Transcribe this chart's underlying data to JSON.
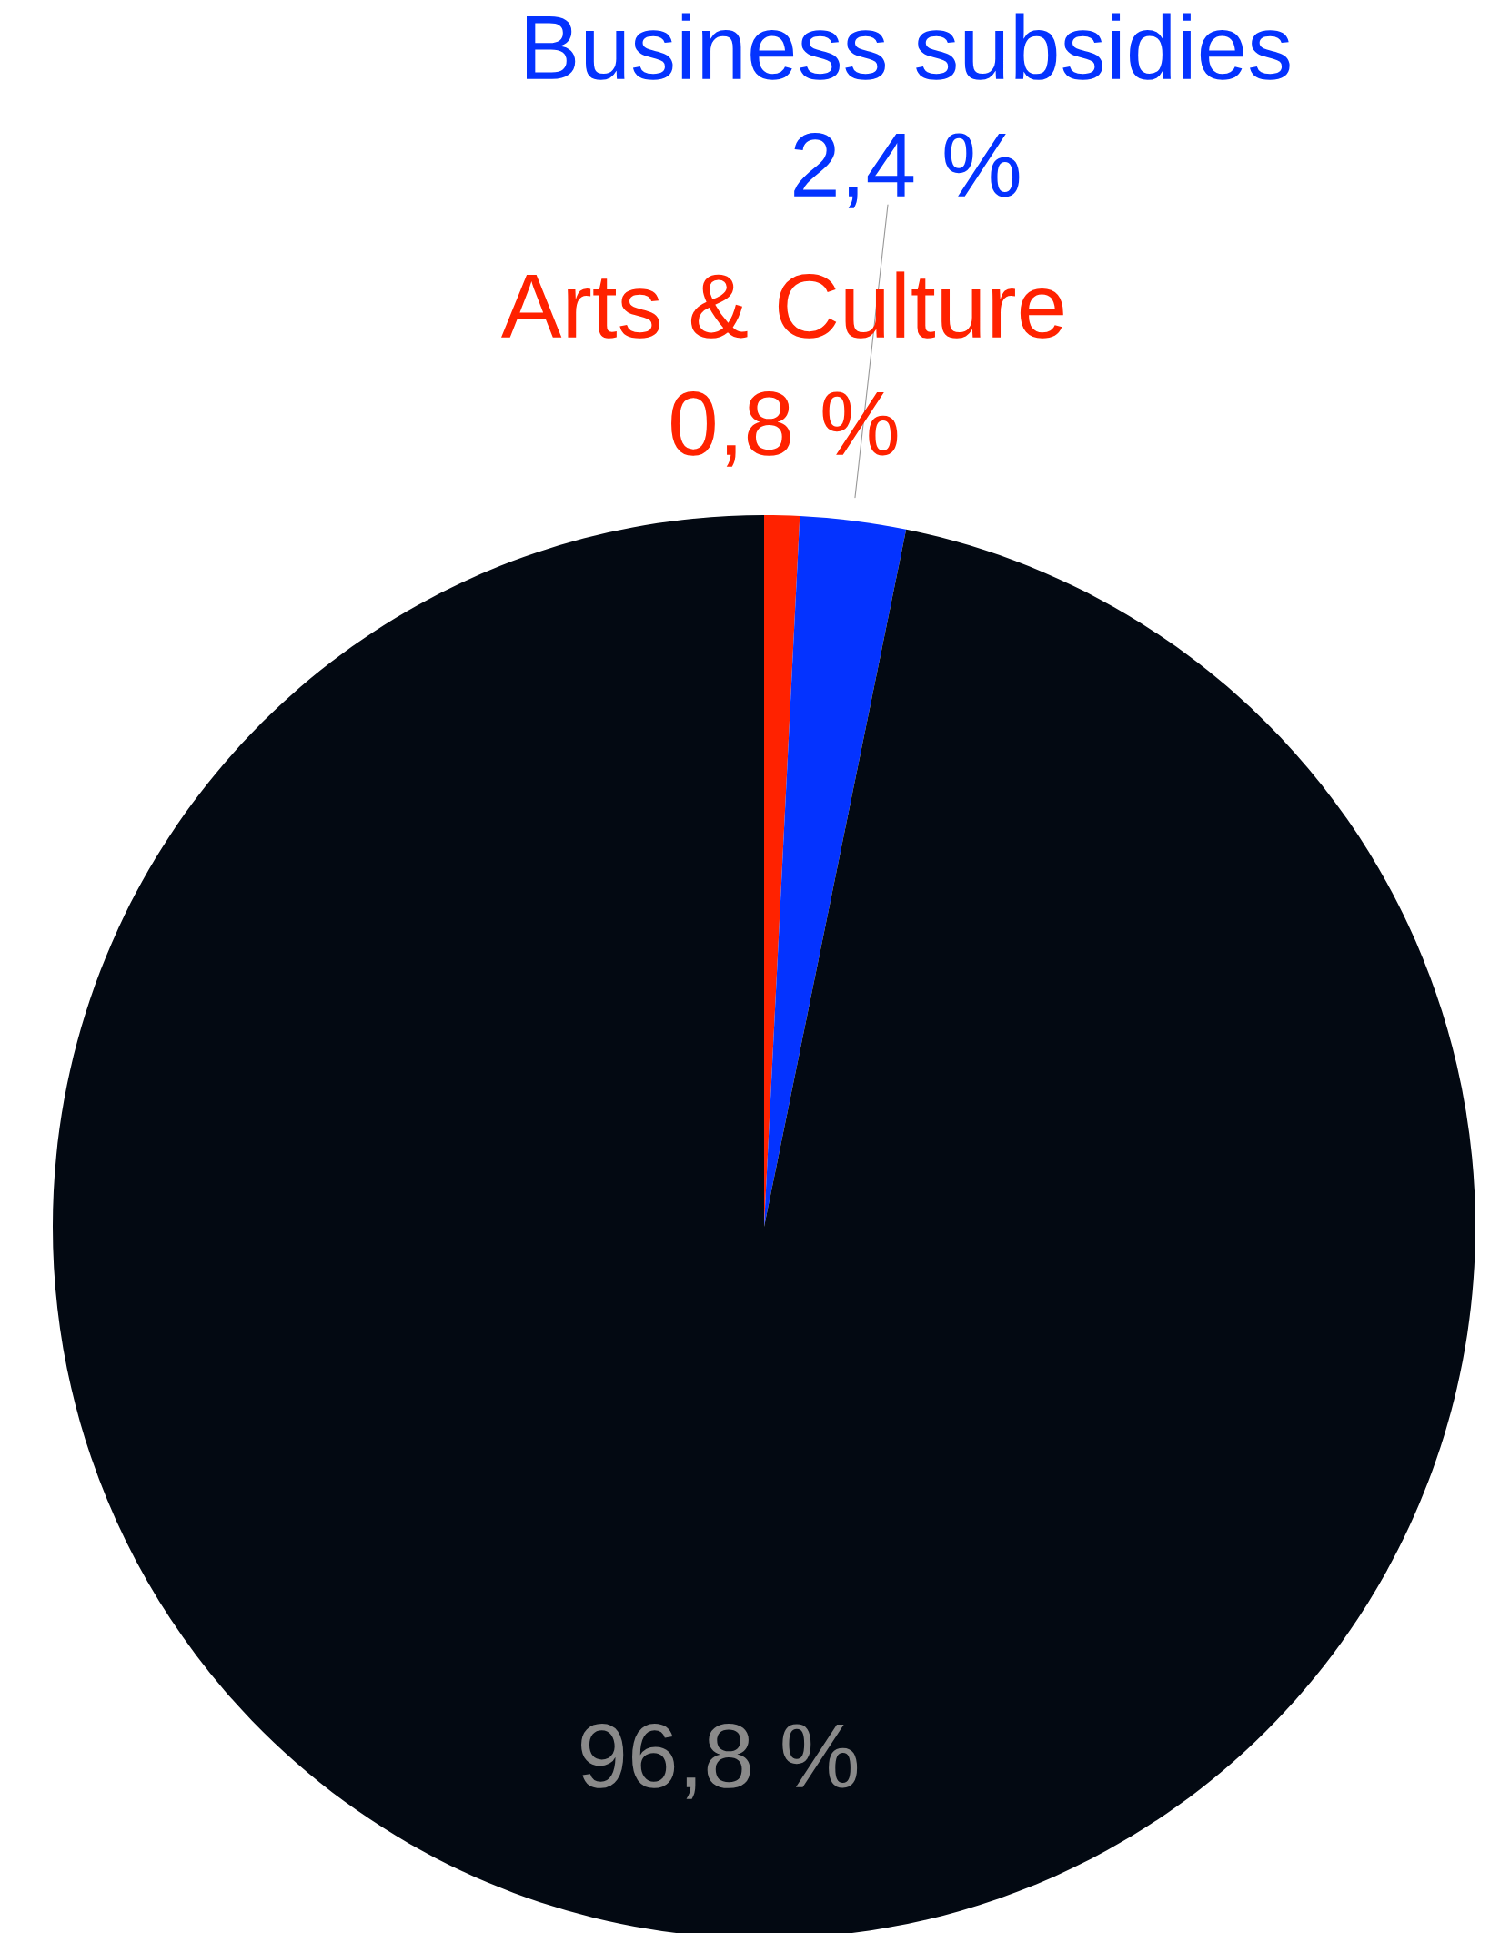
{
  "chart_data": {
    "type": "pie",
    "categories": [
      "Arts & Culture",
      "Business subsidies",
      null
    ],
    "values": [
      0.8,
      2.4,
      96.8
    ],
    "colors": [
      "#ff2200",
      "#0433ff",
      "#030912"
    ],
    "value_labels": [
      "0,8 %",
      "2,4 %",
      "96,8 %"
    ]
  }
}
